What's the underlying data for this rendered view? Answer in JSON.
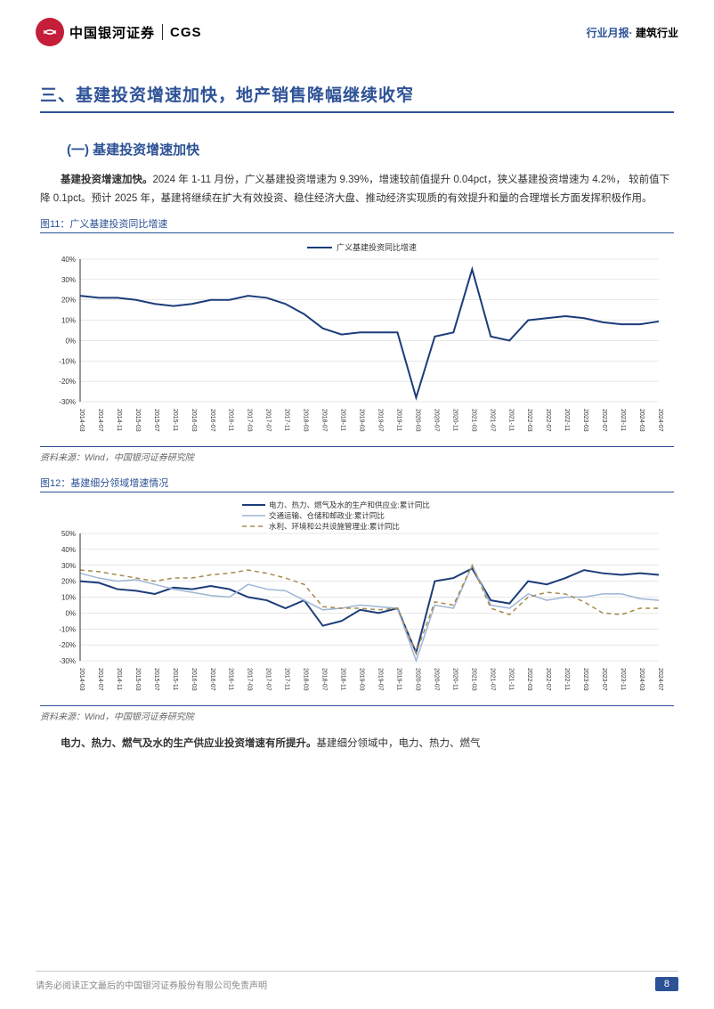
{
  "header": {
    "company_cn": "中国银河证券",
    "company_en": "CGS",
    "report_type": "行业月报",
    "industry": "建筑行业"
  },
  "section": {
    "number": "三、",
    "title": "基建投资增速加快，地产销售降幅继续收窄"
  },
  "subsection1": {
    "number": "(一)",
    "title": "基建投资增速加快"
  },
  "para1_bold": "基建投资增速加快。",
  "para1_text": "2024 年 1-11 月份，广义基建投资增速为 9.39%，增速较前值提升 0.04pct，狭义基建投资增速为 4.2%， 较前值下降 0.1pct。预计 2025 年，基建将继续在扩大有效投资、稳住经济大盘、推动经济实现质的有效提升和量的合理增长方面发挥积极作用。",
  "chart11": {
    "label": "图11：广义基建投资同比增速",
    "legend": "广义基建投资同比增速",
    "type": "line",
    "x_labels": [
      "2014-03",
      "2014-07",
      "2014-11",
      "2015-03",
      "2015-07",
      "2015-11",
      "2016-03",
      "2016-07",
      "2016-11",
      "2017-03",
      "2017-07",
      "2017-11",
      "2018-03",
      "2018-07",
      "2018-11",
      "2019-03",
      "2019-07",
      "2019-11",
      "2020-03",
      "2020-07",
      "2020-11",
      "2021-03",
      "2021-07",
      "2021-11",
      "2022-03",
      "2022-07",
      "2022-11",
      "2023-03",
      "2023-07",
      "2023-11",
      "2024-03",
      "2024-07"
    ],
    "values": [
      22,
      21,
      21,
      20,
      18,
      17,
      18,
      20,
      20,
      22,
      21,
      18,
      13,
      6,
      3,
      4,
      4,
      4,
      -28,
      2,
      4,
      35,
      2,
      0,
      10,
      11,
      12,
      11,
      9,
      8,
      8,
      9.4
    ],
    "ylim": [
      -30,
      40
    ],
    "ytick_step": 10,
    "line_color": "#1c3d7a",
    "line_width": 2,
    "background_color": "#ffffff",
    "grid_color": "#d0d0d0",
    "x_fontsize": 7,
    "y_fontsize": 8,
    "legend_fontsize": 9
  },
  "source11": "资料来源：Wind，中国银河证券研究院",
  "chart12": {
    "label": "图12：基建细分领域增速情况",
    "type": "line",
    "legends": [
      {
        "label": "电力、热力、燃气及水的生产和供应业:累计同比",
        "color": "#1c3d7a",
        "dash": "none",
        "width": 2
      },
      {
        "label": "交通运输、仓储和邮政业:累计同比",
        "color": "#9db5d6",
        "dash": "none",
        "width": 1.5
      },
      {
        "label": "水利、环境和公共设施管理业:累计同比",
        "color": "#a8894a",
        "dash": "5,4",
        "width": 1.5
      }
    ],
    "x_labels": [
      "2014-03",
      "2014-07",
      "2014-11",
      "2015-03",
      "2015-07",
      "2015-11",
      "2016-03",
      "2016-07",
      "2016-11",
      "2017-03",
      "2017-07",
      "2017-11",
      "2018-03",
      "2018-07",
      "2018-11",
      "2019-03",
      "2019-07",
      "2019-11",
      "2020-03",
      "2020-07",
      "2020-11",
      "2021-03",
      "2021-07",
      "2021-11",
      "2022-03",
      "2022-07",
      "2022-11",
      "2023-03",
      "2023-07",
      "2023-11",
      "2024-03",
      "2024-07"
    ],
    "series": [
      [
        20,
        19,
        15,
        14,
        12,
        16,
        15,
        17,
        15,
        10,
        8,
        3,
        8,
        -8,
        -5,
        2,
        0,
        3,
        -25,
        20,
        22,
        28,
        8,
        6,
        20,
        18,
        22,
        27,
        25,
        24,
        25,
        24
      ],
      [
        25,
        22,
        20,
        21,
        18,
        15,
        13,
        11,
        10,
        18,
        15,
        14,
        8,
        2,
        3,
        5,
        4,
        3,
        -30,
        5,
        3,
        30,
        5,
        3,
        12,
        8,
        10,
        10,
        12,
        12,
        9,
        8
      ],
      [
        27,
        26,
        24,
        22,
        20,
        22,
        22,
        24,
        25,
        27,
        25,
        22,
        18,
        4,
        3,
        3,
        2,
        3,
        -25,
        7,
        5,
        30,
        3,
        -1,
        10,
        13,
        12,
        7,
        0,
        -1,
        3,
        3
      ]
    ],
    "ylim": [
      -30,
      50
    ],
    "ytick_step": 10,
    "background_color": "#ffffff",
    "grid_color": "#d0d0d0",
    "x_fontsize": 7,
    "y_fontsize": 8,
    "legend_fontsize": 8.5
  },
  "source12": "资料来源：Wind，中国银河证券研究院",
  "para2_bold": "电力、热力、燃气及水的生产供应业投资增速有所提升。",
  "para2_text": "基建细分领域中，电力、热力、燃气",
  "footer": {
    "disclaimer": "请务必阅读正文最后的中国银河证券股份有限公司免责声明",
    "page": "8"
  }
}
